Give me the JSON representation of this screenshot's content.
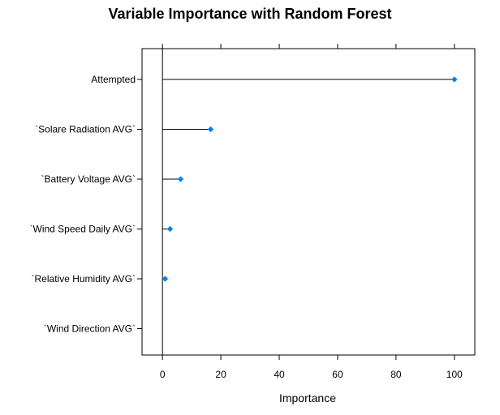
{
  "chart_data": {
    "type": "dotplot",
    "title": "Variable Importance with Random Forest",
    "xlabel": "Importance",
    "ylabel": "",
    "xlim": [
      -7,
      107
    ],
    "xticks": [
      0,
      20,
      40,
      60,
      80,
      100
    ],
    "xtick_labels": [
      "0",
      "20",
      "40",
      "60",
      "80",
      "100"
    ],
    "baseline": 0,
    "categories": [
      "Attempted",
      "`Solare Radiation AVG`",
      "`Battery Voltage AVG`",
      "`Wind Speed Daily AVG`",
      "`Relative Humidity AVG`",
      "`Wind Direction AVG`"
    ],
    "values": [
      100,
      16.5,
      6.2,
      2.6,
      0.9,
      0
    ],
    "point_color": "#0080ff",
    "line_color": "#000000",
    "grid": false,
    "legend": "none"
  }
}
